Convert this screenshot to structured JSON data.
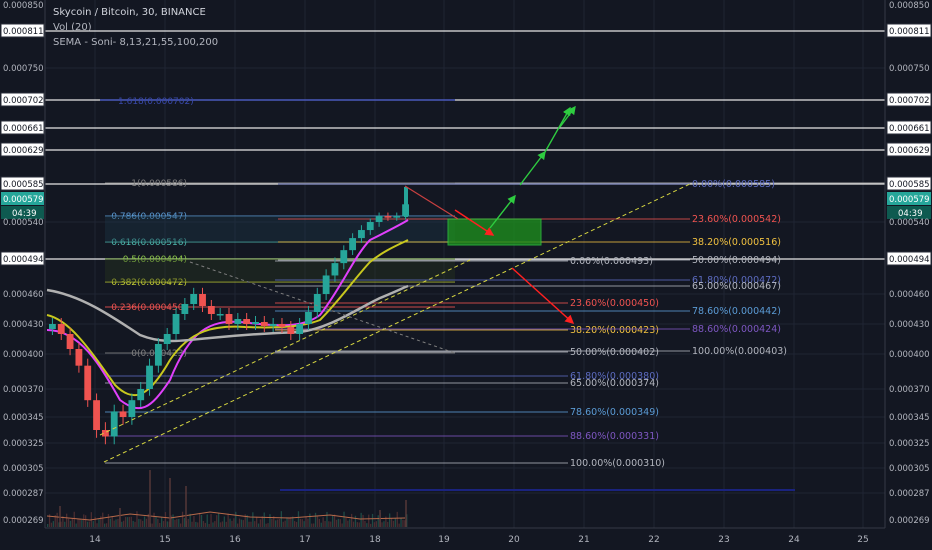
{
  "header": {
    "title": "Skycoin / Bitcoin, 30, BINANCE",
    "volume_label": "Vol (20)",
    "sema_label": "SEMA - Soni- 8,13,21,55,100,200"
  },
  "colors": {
    "background": "#131722",
    "candle_up": "#26a69a",
    "candle_down": "#ef5350",
    "ema_magenta": "#e040fb",
    "ema_yellow": "#c8c81e",
    "ema_grey": "#b0b0b0",
    "trendline": "#d4d440",
    "target_box": "#1e8c1e",
    "arrow_green": "#2ecc40",
    "arrow_red": "#ff2020",
    "price_tag": "#26a69a"
  },
  "chart_data": {
    "type": "candlestick",
    "symbol": "Skycoin / Bitcoin",
    "interval": "30",
    "exchange": "BINANCE",
    "x_ticks": [
      "14",
      "15",
      "16",
      "17",
      "18",
      "19",
      "20",
      "21",
      "22",
      "23",
      "24",
      "25"
    ],
    "y_ticks": [
      "0.000850",
      "0.000750",
      "0.000540",
      "0.000460",
      "0.000430",
      "0.000400",
      "0.000370",
      "0.000345",
      "0.000325",
      "0.000305",
      "0.000287",
      "0.000269"
    ],
    "ylim": [
      0.000269,
      0.00085
    ],
    "current_price": {
      "value": 0.000579,
      "label": "0.000579",
      "timer": "04:39"
    },
    "horizontal_levels": [
      {
        "price": 0.000811,
        "label": "0.000811"
      },
      {
        "price": 0.000702,
        "label": "0.000702"
      },
      {
        "price": 0.000661,
        "label": "0.000661"
      },
      {
        "price": 0.000629,
        "label": "0.000629"
      },
      {
        "price": 0.000585,
        "label": "0.000585"
      },
      {
        "price": 0.000494,
        "label": "0.000494"
      }
    ],
    "fib_retracement_left": [
      {
        "label": "1(0.000586)",
        "price": 0.000586,
        "color": "#808080"
      },
      {
        "label": "0.786(0.000547)",
        "price": 0.000547,
        "color": "#5b9bd5"
      },
      {
        "label": "0.618(0.000516)",
        "price": 0.000516,
        "color": "#4db6ac"
      },
      {
        "label": "0.5(0.000494)",
        "price": 0.000494,
        "color": "#8bc34a"
      },
      {
        "label": "0.382(0.000472)",
        "price": 0.000472,
        "color": "#c0ca33"
      },
      {
        "label": "0.236(0.000450)",
        "price": 0.00045,
        "color": "#ef5350"
      },
      {
        "label": "0(0.000423)",
        "price": 0.000423,
        "color": "#808080"
      }
    ],
    "fib_extension_top": {
      "label": "1.618(0.000702)",
      "price": 0.000702
    },
    "fib_right_upper": [
      {
        "label": "0.00%(0.000585)",
        "price": 0.000585,
        "color": "#5c6bc0"
      },
      {
        "label": "23.60%(0.000542)",
        "price": 0.000542,
        "color": "#ef5350"
      },
      {
        "label": "38.20%(0.000516)",
        "price": 0.000516,
        "color": "#f0c040"
      },
      {
        "label": "50.00%(0.000494)",
        "price": 0.000494,
        "color": "#b2b5be"
      }
    ],
    "fib_right_middle": [
      {
        "label": "0.00%(0.000493)",
        "price": 0.000493,
        "color": "#b2b5be"
      },
      {
        "label": "61.80%(0.000472)",
        "price": 0.000472,
        "color": "#5c6bc0"
      },
      {
        "label": "65.00%(0.000467)",
        "price": 0.000467,
        "color": "#b2b5be"
      },
      {
        "label": "23.60%(0.000450)",
        "price": 0.00045,
        "color": "#ef5350"
      },
      {
        "label": "78.60%(0.000442)",
        "price": 0.000442,
        "color": "#5b9bd5"
      },
      {
        "label": "38.20%(0.000423)",
        "price": 0.000423,
        "color": "#f0c040"
      },
      {
        "label": "88.60%(0.000424)",
        "price": 0.000424,
        "color": "#7e57c2"
      },
      {
        "label": "50.00%(0.000402)",
        "price": 0.000402,
        "color": "#b2b5be"
      },
      {
        "label": "100.00%(0.000403)",
        "price": 0.000403,
        "color": "#b2b5be"
      }
    ],
    "fib_right_lower": [
      {
        "label": "61.80%(0.000380)",
        "price": 0.00038,
        "color": "#5c6bc0"
      },
      {
        "label": "65.00%(0.000374)",
        "price": 0.000374,
        "color": "#b2b5be"
      },
      {
        "label": "78.60%(0.000349)",
        "price": 0.000349,
        "color": "#5b9bd5"
      },
      {
        "label": "88.60%(0.000331)",
        "price": 0.000331,
        "color": "#7e57c2"
      },
      {
        "label": "100.00%(0.000310)",
        "price": 0.00031,
        "color": "#b2b5be"
      }
    ],
    "bottom_level": {
      "price": 0.000287,
      "label": "0.000287"
    }
  }
}
